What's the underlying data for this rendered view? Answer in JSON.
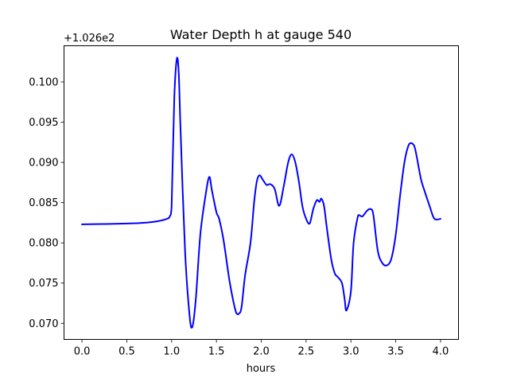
{
  "chart_data": {
    "type": "line",
    "title": "Water Depth h at gauge 540",
    "xlabel": "hours",
    "ylabel": "",
    "y_offset_label": "+1.026e2",
    "xlim": [
      -0.2,
      4.2
    ],
    "ylim": [
      0.068,
      0.1045
    ],
    "x_ticks": [
      0.0,
      0.5,
      1.0,
      1.5,
      2.0,
      2.5,
      3.0,
      3.5,
      4.0
    ],
    "x_tick_labels": [
      "0.0",
      "0.5",
      "1.0",
      "1.5",
      "2.0",
      "2.5",
      "3.0",
      "3.5",
      "4.0"
    ],
    "y_ticks": [
      0.07,
      0.075,
      0.08,
      0.085,
      0.09,
      0.095,
      0.1
    ],
    "y_tick_labels": [
      "0.070",
      "0.075",
      "0.080",
      "0.085",
      "0.090",
      "0.095",
      "0.100"
    ],
    "grid": false,
    "series": [
      {
        "color": "#0000ff",
        "x": [
          0.0,
          0.5,
          0.7,
          0.85,
          0.95,
          0.98,
          1.0,
          1.03,
          1.06,
          1.08,
          1.1,
          1.15,
          1.2,
          1.23,
          1.27,
          1.32,
          1.38,
          1.42,
          1.45,
          1.5,
          1.53,
          1.58,
          1.65,
          1.72,
          1.75,
          1.78,
          1.82,
          1.88,
          1.92,
          1.95,
          1.98,
          2.02,
          2.06,
          2.1,
          2.15,
          2.2,
          2.25,
          2.3,
          2.34,
          2.38,
          2.42,
          2.46,
          2.5,
          2.54,
          2.58,
          2.62,
          2.65,
          2.67,
          2.7,
          2.73,
          2.78,
          2.82,
          2.85,
          2.9,
          2.93,
          2.95,
          3.0,
          3.03,
          3.08,
          3.1,
          3.13,
          3.18,
          3.22,
          3.25,
          3.3,
          3.35,
          3.4,
          3.45,
          3.5,
          3.55,
          3.6,
          3.65,
          3.69,
          3.72,
          3.78,
          3.82,
          3.88,
          3.92,
          3.95,
          4.0
        ],
        "y": [
          0.0823,
          0.0824,
          0.0825,
          0.0827,
          0.083,
          0.0833,
          0.0845,
          0.098,
          0.103,
          0.101,
          0.094,
          0.079,
          0.071,
          0.0695,
          0.073,
          0.081,
          0.086,
          0.0882,
          0.0865,
          0.0838,
          0.083,
          0.0803,
          0.075,
          0.0713,
          0.0712,
          0.072,
          0.076,
          0.08,
          0.085,
          0.0876,
          0.0884,
          0.0878,
          0.0872,
          0.0873,
          0.0867,
          0.0846,
          0.087,
          0.09,
          0.091,
          0.09,
          0.0876,
          0.0845,
          0.083,
          0.0824,
          0.0842,
          0.0853,
          0.0851,
          0.0855,
          0.0846,
          0.082,
          0.078,
          0.0762,
          0.0758,
          0.075,
          0.073,
          0.0716,
          0.074,
          0.08,
          0.0834,
          0.0834,
          0.0833,
          0.084,
          0.0842,
          0.0835,
          0.079,
          0.0775,
          0.0772,
          0.078,
          0.081,
          0.086,
          0.0902,
          0.0923,
          0.0923,
          0.0915,
          0.088,
          0.0865,
          0.0845,
          0.0832,
          0.0829,
          0.083
        ]
      }
    ]
  }
}
